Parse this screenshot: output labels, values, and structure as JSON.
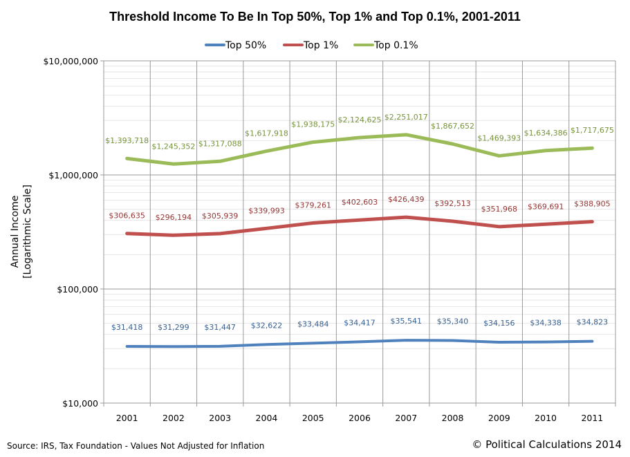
{
  "chart_data": {
    "type": "line",
    "title": "Threshold Income To Be In Top 50%, Top 1% and Top 0.1%, 2001-2011",
    "ylabel": [
      "Annual Income",
      "[Logarithmic Scale]"
    ],
    "xlabel": "",
    "yscale": "log",
    "ylim": [
      10000,
      10000000
    ],
    "yticks": [
      10000,
      100000,
      1000000,
      10000000
    ],
    "ytick_labels": [
      "$10,000",
      "$100,000",
      "$1,000,000",
      "$10,000,000"
    ],
    "grid": true,
    "legend_position": "top",
    "categories": [
      "2001",
      "2002",
      "2003",
      "2004",
      "2005",
      "2006",
      "2007",
      "2008",
      "2009",
      "2010",
      "2011"
    ],
    "series": [
      {
        "name": "Top 50%",
        "color": "#4f81bd",
        "values": [
          31418,
          31299,
          31447,
          32622,
          33484,
          34417,
          35541,
          35340,
          34156,
          34338,
          34823
        ],
        "labels": [
          "$31,418",
          "$31,299",
          "$31,447",
          "$32,622",
          "$33,484",
          "$34,417",
          "$35,541",
          "$35,340",
          "$34,156",
          "$34,338",
          "$34,823"
        ]
      },
      {
        "name": "Top 1%",
        "color": "#c0504d",
        "values": [
          306635,
          296194,
          305939,
          339993,
          379261,
          402603,
          426439,
          392513,
          351968,
          369691,
          388905
        ],
        "labels": [
          "$306,635",
          "$296,194",
          "$305,939",
          "$339,993",
          "$379,261",
          "$402,603",
          "$426,439",
          "$392,513",
          "$351,968",
          "$369,691",
          "$388,905"
        ]
      },
      {
        "name": "Top 0.1%",
        "color": "#9bbb59",
        "values": [
          1393718,
          1245352,
          1317088,
          1617918,
          1938175,
          2124625,
          2251017,
          1867652,
          1469393,
          1634386,
          1717675
        ],
        "labels": [
          "$1,393,718",
          "$1,245,352",
          "$1,317,088",
          "$1,617,918",
          "$1,938,175",
          "$2,124,625",
          "$2,251,017",
          "$1,867,652",
          "$1,469,393",
          "$1,634,386",
          "$1,717,675"
        ]
      }
    ]
  },
  "label_colors": [
    "#376092",
    "#953735",
    "#77933c"
  ],
  "footer": {
    "source": "Source: IRS, Tax Foundation  - Values Not Adjusted for Inflation",
    "copyright": "© Political Calculations 2014"
  }
}
